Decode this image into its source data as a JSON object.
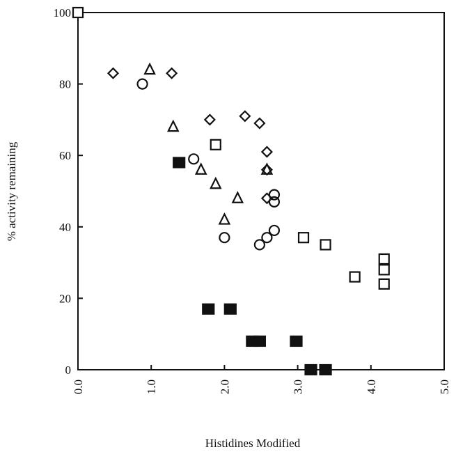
{
  "chart_data": {
    "type": "scatter",
    "title": "",
    "xlabel": "Histidines Modified",
    "ylabel": "% activity remaining",
    "xlim": [
      0,
      5
    ],
    "ylim": [
      0,
      100
    ],
    "x_ticks": [
      "0.0",
      "1.0",
      "2.0",
      "3.0",
      "4.0",
      "5.0"
    ],
    "y_ticks": [
      "0",
      "20",
      "40",
      "60",
      "80",
      "100"
    ],
    "grid": false,
    "legend": "none",
    "series": [
      {
        "marker": "diamond-open",
        "points": [
          [
            0.48,
            83
          ],
          [
            1.28,
            83
          ],
          [
            1.8,
            70
          ],
          [
            2.28,
            71
          ],
          [
            2.48,
            69
          ],
          [
            2.58,
            61
          ],
          [
            2.58,
            56
          ],
          [
            2.58,
            48
          ]
        ]
      },
      {
        "marker": "triangle-open",
        "points": [
          [
            0.98,
            84
          ],
          [
            1.3,
            68
          ],
          [
            1.68,
            56
          ],
          [
            1.88,
            52
          ],
          [
            2.18,
            48
          ],
          [
            2.0,
            42
          ],
          [
            2.58,
            56
          ]
        ]
      },
      {
        "marker": "circle-open",
        "points": [
          [
            0.88,
            80
          ],
          [
            1.58,
            59
          ],
          [
            2.0,
            37
          ],
          [
            2.48,
            35
          ],
          [
            2.58,
            37
          ],
          [
            2.68,
            39
          ],
          [
            2.68,
            49
          ],
          [
            2.68,
            47
          ]
        ]
      },
      {
        "marker": "square-open",
        "points": [
          [
            0.0,
            100
          ],
          [
            1.88,
            63
          ],
          [
            3.08,
            37
          ],
          [
            3.38,
            35
          ],
          [
            3.78,
            26
          ],
          [
            4.18,
            31
          ],
          [
            4.18,
            28
          ],
          [
            4.18,
            24
          ]
        ]
      },
      {
        "marker": "square-filled",
        "points": [
          [
            1.38,
            58
          ],
          [
            1.78,
            17
          ],
          [
            2.08,
            17
          ],
          [
            2.38,
            8
          ],
          [
            2.48,
            8
          ],
          [
            2.98,
            8
          ],
          [
            3.18,
            0
          ],
          [
            3.38,
            0
          ]
        ]
      }
    ]
  }
}
